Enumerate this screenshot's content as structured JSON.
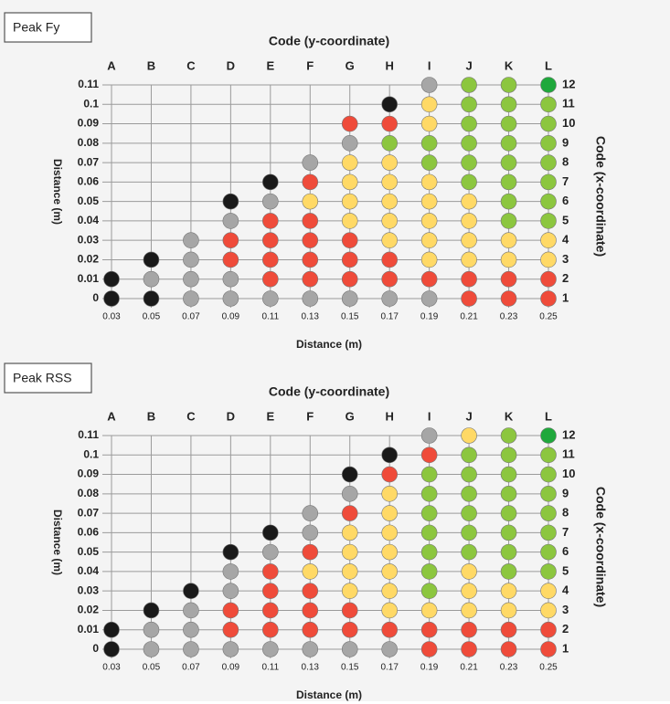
{
  "colors": {
    "black": "#1a1a1a",
    "gray": "#a6a6a6",
    "red": "#ef4b3a",
    "yellow": "#ffd966",
    "green": "#8cc63f",
    "dgreen": "#1fa83c"
  },
  "panels": [
    {
      "label": "Peak Fy",
      "top_title": "Code (y-coordinate)",
      "right_title": "Code (x-coordinate)",
      "left_title": "Distance (m)",
      "bottom_title": "Distance (m)",
      "col_codes": [
        "A",
        "B",
        "C",
        "D",
        "E",
        "F",
        "G",
        "H",
        "I",
        "J",
        "K",
        "L"
      ],
      "row_codes": [
        1,
        2,
        3,
        4,
        5,
        6,
        7,
        8,
        9,
        10,
        11,
        12
      ],
      "xticks": [
        0.03,
        0.05,
        0.07,
        0.09,
        0.11,
        0.13,
        0.15,
        0.17,
        0.19,
        0.21,
        0.23,
        0.25
      ],
      "yticks": [
        0,
        0.01,
        0.02,
        0.03,
        0.04,
        0.05,
        0.06,
        0.07,
        0.08,
        0.09,
        0.1,
        0.11
      ],
      "cells": [
        [
          "black",
          "black"
        ],
        [
          "black",
          "gray",
          "black"
        ],
        [
          "gray",
          "gray",
          "gray",
          "gray"
        ],
        [
          "gray",
          "gray",
          "red",
          "red",
          "gray",
          "black"
        ],
        [
          "gray",
          "red",
          "red",
          "red",
          "red",
          "gray",
          "black"
        ],
        [
          "gray",
          "red",
          "red",
          "red",
          "red",
          "yellow",
          "red",
          "gray"
        ],
        [
          "gray",
          "red",
          "red",
          "red",
          "yellow",
          "yellow",
          "yellow",
          "yellow",
          "gray",
          "red"
        ],
        [
          "gray",
          "red",
          "red",
          "yellow",
          "yellow",
          "yellow",
          "yellow",
          "yellow",
          "green",
          "red",
          "black"
        ],
        [
          "gray",
          "red",
          "yellow",
          "yellow",
          "yellow",
          "yellow",
          "yellow",
          "green",
          "green",
          "yellow",
          "yellow",
          "gray"
        ],
        [
          "red",
          "red",
          "yellow",
          "yellow",
          "yellow",
          "yellow",
          "green",
          "green",
          "green",
          "green",
          "green",
          "green"
        ],
        [
          "red",
          "red",
          "yellow",
          "yellow",
          "green",
          "green",
          "green",
          "green",
          "green",
          "green",
          "green",
          "green"
        ],
        [
          "red",
          "red",
          "yellow",
          "yellow",
          "green",
          "green",
          "green",
          "green",
          "green",
          "green",
          "green",
          "dgreen"
        ]
      ]
    },
    {
      "label": "Peak RSS",
      "top_title": "Code (y-coordinate)",
      "right_title": "Code (x-coordinate)",
      "left_title": "Distance (m)",
      "bottom_title": "Distance (m)",
      "col_codes": [
        "A",
        "B",
        "C",
        "D",
        "E",
        "F",
        "G",
        "H",
        "I",
        "J",
        "K",
        "L"
      ],
      "row_codes": [
        1,
        2,
        3,
        4,
        5,
        6,
        7,
        8,
        9,
        10,
        11,
        12
      ],
      "xticks": [
        0.03,
        0.05,
        0.07,
        0.09,
        0.11,
        0.13,
        0.15,
        0.17,
        0.19,
        0.21,
        0.23,
        0.25
      ],
      "yticks": [
        0,
        0.01,
        0.02,
        0.03,
        0.04,
        0.05,
        0.06,
        0.07,
        0.08,
        0.09,
        0.1,
        0.11
      ],
      "cells": [
        [
          "black",
          "black"
        ],
        [
          "gray",
          "gray",
          "black"
        ],
        [
          "gray",
          "gray",
          "gray",
          "black"
        ],
        [
          "gray",
          "red",
          "red",
          "gray",
          "gray",
          "black"
        ],
        [
          "gray",
          "red",
          "red",
          "red",
          "red",
          "gray",
          "black"
        ],
        [
          "gray",
          "red",
          "red",
          "red",
          "yellow",
          "red",
          "gray",
          "gray"
        ],
        [
          "gray",
          "red",
          "red",
          "yellow",
          "yellow",
          "yellow",
          "yellow",
          "red",
          "gray",
          "black"
        ],
        [
          "gray",
          "red",
          "yellow",
          "yellow",
          "yellow",
          "yellow",
          "yellow",
          "yellow",
          "yellow",
          "red",
          "black"
        ],
        [
          "red",
          "red",
          "yellow",
          "green",
          "green",
          "green",
          "green",
          "green",
          "green",
          "green",
          "red",
          "gray"
        ],
        [
          "red",
          "red",
          "yellow",
          "yellow",
          "yellow",
          "green",
          "green",
          "green",
          "green",
          "green",
          "green",
          "yellow"
        ],
        [
          "red",
          "red",
          "yellow",
          "yellow",
          "green",
          "green",
          "green",
          "green",
          "green",
          "green",
          "green",
          "green"
        ],
        [
          "red",
          "red",
          "yellow",
          "yellow",
          "green",
          "green",
          "green",
          "green",
          "green",
          "green",
          "green",
          "dgreen"
        ]
      ]
    }
  ]
}
